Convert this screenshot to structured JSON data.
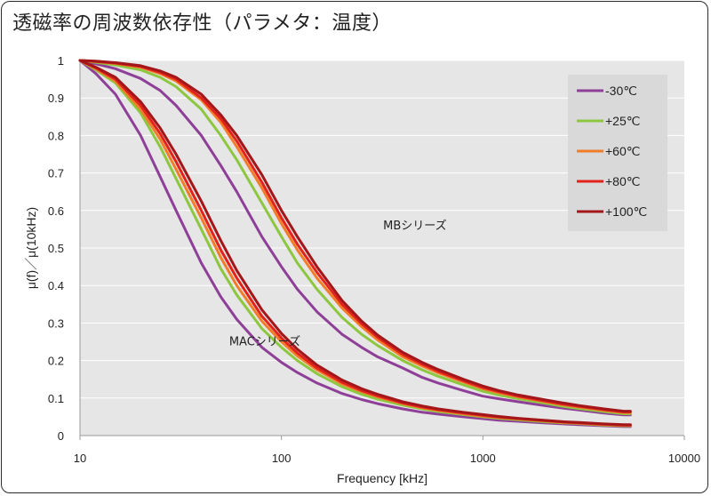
{
  "title": "透磁率の周波数依存性（パラメタ：温度）",
  "chart_data": {
    "type": "line",
    "title": "透磁率の周波数依存性（パラメタ：温度）",
    "xlabel": "Frequency [kHz]",
    "ylabel": "μ(f)／μ(10kHz)",
    "xscale": "log",
    "xlim": [
      10,
      10000
    ],
    "ylim": [
      0,
      1
    ],
    "x_ticks": [
      "10",
      "100",
      "1000",
      "10000"
    ],
    "y_ticks": [
      "0",
      "0.1",
      "0.2",
      "0.3",
      "0.4",
      "0.5",
      "0.6",
      "0.7",
      "0.8",
      "0.9",
      "1"
    ],
    "grid": "horizontal",
    "legend_position": "top-right",
    "annotations": [
      {
        "text": "MBシリーズ",
        "x": 320,
        "y": 0.55
      },
      {
        "text": "MACシリーズ",
        "x": 55,
        "y": 0.24
      }
    ],
    "x": [
      10,
      12,
      15,
      20,
      25,
      30,
      40,
      50,
      60,
      80,
      100,
      120,
      150,
      200,
      250,
      300,
      400,
      500,
      600,
      800,
      1000,
      1200,
      1500,
      2000,
      2500,
      3000,
      4000,
      5000,
      5400
    ],
    "series": [
      {
        "name": "-30℃",
        "group": "MBシリーズ",
        "color": "#8e3f97",
        "values": [
          1.0,
          0.991,
          0.978,
          0.952,
          0.92,
          0.88,
          0.8,
          0.72,
          0.65,
          0.53,
          0.45,
          0.39,
          0.33,
          0.27,
          0.235,
          0.21,
          0.18,
          0.155,
          0.14,
          0.12,
          0.105,
          0.098,
          0.09,
          0.08,
          0.073,
          0.068,
          0.06,
          0.055,
          0.055
        ]
      },
      {
        "name": "+25℃",
        "group": "MBシリーズ",
        "color": "#8dc63f",
        "values": [
          1.0,
          0.995,
          0.988,
          0.975,
          0.955,
          0.93,
          0.87,
          0.8,
          0.735,
          0.62,
          0.53,
          0.46,
          0.39,
          0.315,
          0.27,
          0.24,
          0.2,
          0.175,
          0.158,
          0.135,
          0.118,
          0.108,
          0.098,
          0.087,
          0.078,
          0.072,
          0.064,
          0.058,
          0.058
        ]
      },
      {
        "name": "+60℃",
        "group": "MBシリーズ",
        "color": "#f07d2a",
        "values": [
          1.0,
          0.997,
          0.992,
          0.982,
          0.965,
          0.945,
          0.895,
          0.835,
          0.77,
          0.66,
          0.565,
          0.495,
          0.42,
          0.34,
          0.29,
          0.255,
          0.21,
          0.185,
          0.167,
          0.143,
          0.125,
          0.114,
          0.103,
          0.091,
          0.082,
          0.076,
          0.067,
          0.061,
          0.061
        ]
      },
      {
        "name": "+80℃",
        "group": "MBシリーズ",
        "color": "#e3231b",
        "values": [
          1.0,
          0.997,
          0.993,
          0.984,
          0.968,
          0.95,
          0.9,
          0.845,
          0.785,
          0.675,
          0.58,
          0.51,
          0.435,
          0.35,
          0.298,
          0.262,
          0.216,
          0.19,
          0.171,
          0.146,
          0.128,
          0.117,
          0.105,
          0.093,
          0.084,
          0.078,
          0.069,
          0.063,
          0.063
        ]
      },
      {
        "name": "+100℃",
        "group": "MBシリーズ",
        "color": "#a3171b",
        "values": [
          1.0,
          0.998,
          0.994,
          0.986,
          0.972,
          0.955,
          0.91,
          0.855,
          0.8,
          0.695,
          0.6,
          0.53,
          0.45,
          0.36,
          0.305,
          0.268,
          0.222,
          0.195,
          0.176,
          0.15,
          0.132,
          0.12,
          0.108,
          0.096,
          0.087,
          0.08,
          0.071,
          0.065,
          0.065
        ]
      },
      {
        "name": "-30℃",
        "group": "MACシリーズ",
        "color": "#8e3f97",
        "values": [
          1.0,
          0.965,
          0.91,
          0.8,
          0.69,
          0.6,
          0.46,
          0.37,
          0.31,
          0.235,
          0.195,
          0.168,
          0.14,
          0.112,
          0.096,
          0.085,
          0.071,
          0.062,
          0.057,
          0.05,
          0.045,
          0.041,
          0.038,
          0.034,
          0.031,
          0.029,
          0.026,
          0.024,
          0.024
        ]
      },
      {
        "name": "+25℃",
        "group": "MACシリーズ",
        "color": "#8dc63f",
        "values": [
          1.0,
          0.975,
          0.94,
          0.86,
          0.77,
          0.685,
          0.55,
          0.445,
          0.375,
          0.285,
          0.235,
          0.2,
          0.165,
          0.13,
          0.11,
          0.097,
          0.081,
          0.071,
          0.064,
          0.056,
          0.05,
          0.046,
          0.042,
          0.037,
          0.034,
          0.032,
          0.028,
          0.026,
          0.026
        ]
      },
      {
        "name": "+60℃",
        "group": "MACシリーズ",
        "color": "#f07d2a",
        "values": [
          1.0,
          0.978,
          0.945,
          0.87,
          0.79,
          0.71,
          0.58,
          0.475,
          0.4,
          0.305,
          0.25,
          0.212,
          0.175,
          0.138,
          0.117,
          0.103,
          0.085,
          0.074,
          0.067,
          0.058,
          0.052,
          0.048,
          0.044,
          0.039,
          0.035,
          0.033,
          0.029,
          0.027,
          0.027
        ]
      },
      {
        "name": "+80℃",
        "group": "MACシリーズ",
        "color": "#e3231b",
        "values": [
          1.0,
          0.98,
          0.95,
          0.88,
          0.805,
          0.73,
          0.6,
          0.495,
          0.42,
          0.318,
          0.26,
          0.22,
          0.18,
          0.142,
          0.12,
          0.106,
          0.087,
          0.076,
          0.069,
          0.06,
          0.054,
          0.049,
          0.045,
          0.04,
          0.036,
          0.034,
          0.03,
          0.028,
          0.028
        ]
      },
      {
        "name": "+100℃",
        "group": "MACシリーズ",
        "color": "#a3171b",
        "values": [
          1.0,
          0.982,
          0.955,
          0.89,
          0.82,
          0.75,
          0.625,
          0.52,
          0.44,
          0.335,
          0.272,
          0.23,
          0.188,
          0.148,
          0.125,
          0.11,
          0.09,
          0.079,
          0.071,
          0.062,
          0.056,
          0.051,
          0.046,
          0.041,
          0.037,
          0.035,
          0.031,
          0.029,
          0.029
        ]
      }
    ],
    "legend": [
      {
        "label": "-30℃",
        "color": "#8e3f97"
      },
      {
        "label": "+25℃",
        "color": "#8dc63f"
      },
      {
        "label": "+60℃",
        "color": "#f07d2a"
      },
      {
        "label": "+80℃",
        "color": "#e3231b"
      },
      {
        "label": "+100℃",
        "color": "#a3171b"
      }
    ],
    "colors": {
      "plot_background": "#e6e6e6",
      "legend_background": "#d9d9d9",
      "grid": "#ffffff"
    }
  }
}
